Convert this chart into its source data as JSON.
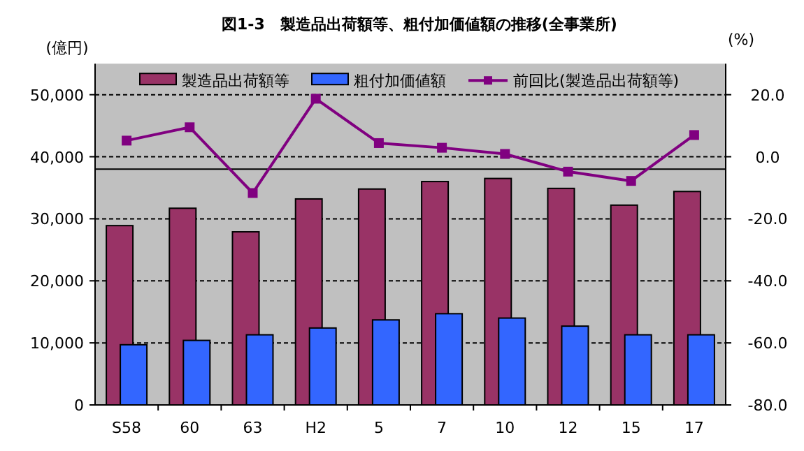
{
  "chart_data": {
    "type": "bar",
    "title": "図1-3　製造品出荷額等、粗付加価値額の推移(全事業所)",
    "ylabel": "(億円)",
    "y2label": "(%)",
    "categories": [
      "S58",
      "60",
      "63",
      "H2",
      "5",
      "7",
      "10",
      "12",
      "15",
      "17"
    ],
    "series": [
      {
        "name": "製造品出荷額等",
        "color": "#993366",
        "values": [
          28900,
          31700,
          27900,
          33200,
          34800,
          36000,
          36500,
          34900,
          32200,
          34400
        ]
      },
      {
        "name": "粗付加価値額",
        "color": "#3366ff",
        "values": [
          9700,
          10400,
          11300,
          12400,
          13700,
          14700,
          14000,
          12700,
          11300,
          11300
        ]
      },
      {
        "name": "前回比(製造品出荷額等)",
        "type": "line",
        "axis": "y2",
        "color": "#800080",
        "marker": "square",
        "values": [
          5.2,
          9.5,
          -11.7,
          18.7,
          4.4,
          2.9,
          0.9,
          -4.8,
          -7.8,
          7.0
        ]
      }
    ],
    "ylim": [
      0,
      55000
    ],
    "yticks": [
      {
        "value": 0,
        "label": "0"
      },
      {
        "value": 10000,
        "label": "10,000"
      },
      {
        "value": 20000,
        "label": "20,000"
      },
      {
        "value": 30000,
        "label": "30,000"
      },
      {
        "value": 40000,
        "label": "40,000"
      },
      {
        "value": 50000,
        "label": "50,000"
      }
    ],
    "y2lim": [
      -80,
      30
    ],
    "y2ticks": [
      {
        "value": -80,
        "label": "-80.0"
      },
      {
        "value": -60,
        "label": "-60.0"
      },
      {
        "value": -40,
        "label": "-40.0"
      },
      {
        "value": -20,
        "label": "-20.0"
      },
      {
        "value": 0,
        "label": "0.0"
      },
      {
        "value": 20,
        "label": "20.0"
      }
    ],
    "ref_lines": [
      {
        "axis": "y",
        "value": 38000,
        "color": "#000000"
      }
    ],
    "grid": "y",
    "legend": "top"
  }
}
